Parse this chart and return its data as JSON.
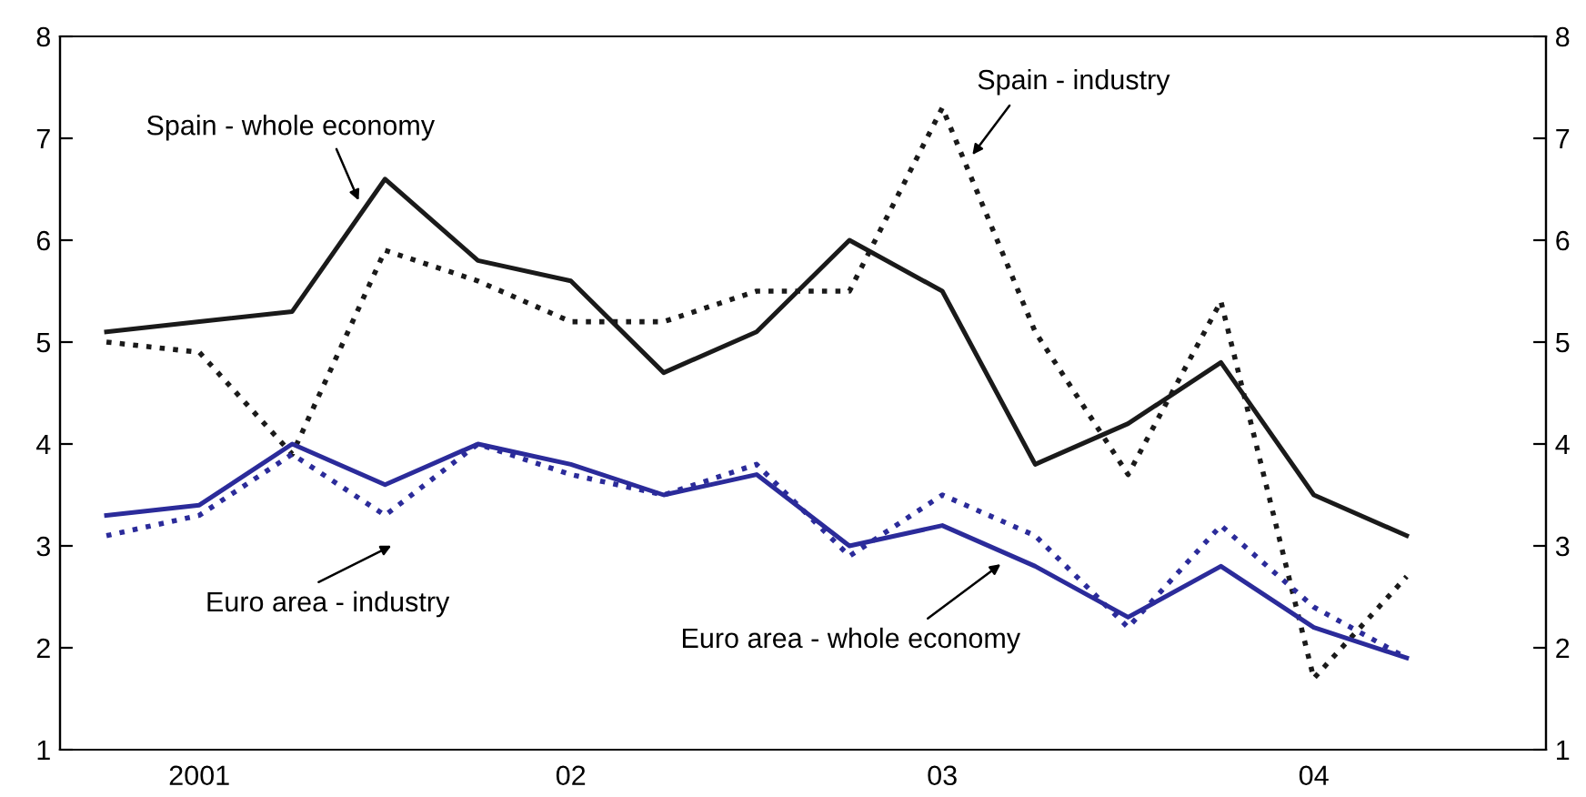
{
  "chart_data": {
    "type": "line",
    "categories": [
      null,
      "2001",
      null,
      null,
      null,
      "02",
      null,
      null,
      null,
      "03",
      null,
      null,
      null,
      "04",
      null
    ],
    "series": [
      {
        "color": "#1a1a1a",
        "line_style": "solid",
        "values": [
          5.1,
          5.2,
          5.3,
          6.6,
          5.8,
          5.6,
          4.7,
          5.1,
          6.0,
          5.5,
          3.8,
          4.2,
          4.8,
          3.5,
          3.1
        ]
      },
      {
        "color": "#1a1a1a",
        "line_style": "dotted",
        "values": [
          5.0,
          4.9,
          3.9,
          5.9,
          5.6,
          5.2,
          5.2,
          5.5,
          5.5,
          7.3,
          5.1,
          3.7,
          5.4,
          1.7,
          2.7
        ]
      },
      {
        "color": "#2b2b9a",
        "line_style": "solid",
        "values": [
          3.3,
          3.4,
          4.0,
          3.6,
          4.0,
          3.8,
          3.5,
          3.7,
          3.0,
          3.2,
          2.8,
          2.3,
          2.8,
          2.2,
          1.9
        ]
      },
      {
        "color": "#2b2b9a",
        "line_style": "dotted",
        "values": [
          3.1,
          3.3,
          3.9,
          3.3,
          4.0,
          3.7,
          3.5,
          3.8,
          2.9,
          3.5,
          3.1,
          2.2,
          3.2,
          2.4,
          1.9
        ]
      }
    ],
    "annotations": [
      "Spain - whole economy",
      "Spain - industry",
      "Euro area - industry",
      "Euro area - whole economy"
    ],
    "ylim": [
      1,
      8
    ],
    "yticks": [
      1,
      2,
      3,
      4,
      5,
      6,
      7,
      8
    ],
    "y2lim": [
      1,
      8
    ],
    "y2ticks": [
      1,
      2,
      3,
      4,
      5,
      6,
      7,
      8
    ],
    "grid": false,
    "legend": false,
    "marker": "none"
  }
}
